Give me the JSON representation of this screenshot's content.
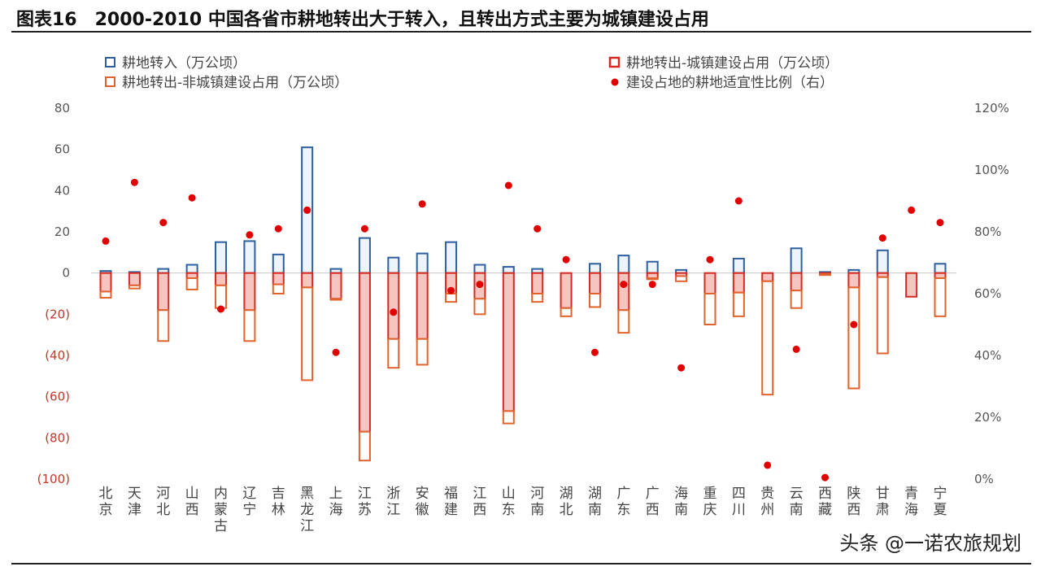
{
  "title": "图表16　2000-2010 中国各省市耕地转出大于转入，且转出方式主要为城镇建设占用",
  "watermark": "头条 @一诺农旅规划",
  "colors": {
    "transfer_in": "#2e5f9e",
    "urban": "#d42a22",
    "urban_fill": "#f6c5c0",
    "non_urban": "#e0632e",
    "ratio": "#e00000",
    "zero_line": "#c8c8c8"
  },
  "chart_data": {
    "type": "bar",
    "categories": [
      "北京",
      "天津",
      "河北",
      "山西",
      "内蒙古",
      "辽宁",
      "吉林",
      "黑龙江",
      "上海",
      "江苏",
      "浙江",
      "安徽",
      "福建",
      "江西",
      "山东",
      "河南",
      "湖北",
      "湖南",
      "广东",
      "广西",
      "海南",
      "重庆",
      "四川",
      "贵州",
      "云南",
      "西藏",
      "陕西",
      "甘肃",
      "青海",
      "宁夏"
    ],
    "series": [
      {
        "name": "耕地转入（万公顷）",
        "axis": "left",
        "values": [
          1,
          0.5,
          2,
          4,
          15,
          15.5,
          9,
          61,
          2,
          17,
          7.5,
          9.5,
          15,
          4,
          3,
          2,
          0,
          4.5,
          8.5,
          5.5,
          1.5,
          0,
          7,
          0,
          12,
          0.5,
          1.5,
          11,
          0,
          4.5
        ]
      },
      {
        "name": "耕地转出-城镇建设占用（万公顷）",
        "axis": "left",
        "values": [
          -9,
          -6,
          -18,
          -2.5,
          -6,
          -18,
          -5.5,
          -7,
          -12.5,
          -77,
          -32,
          -32,
          -10,
          -12.5,
          -67,
          -10,
          -17,
          -10,
          -18,
          -2.5,
          -1.5,
          -10,
          -9.5,
          -4,
          -8.5,
          -0.5,
          -7,
          -2,
          -11.5,
          -2.5
        ]
      },
      {
        "name": "耕地转出-非城镇建设占用（万公顷）",
        "axis": "left",
        "values": [
          -3,
          -1.5,
          -15,
          -5.5,
          -11,
          -15,
          -4.5,
          -45,
          -0.5,
          -14,
          -14,
          -12.5,
          -4,
          -7.5,
          -6,
          -4,
          -4,
          -6.5,
          -11,
          -0.5,
          -2.5,
          -15,
          -11.5,
          -55,
          -8.5,
          -0.5,
          -49,
          -37,
          0,
          -18.5
        ]
      },
      {
        "name": "建设占地的耕地适宜性比例（右）",
        "axis": "right",
        "type": "scatter",
        "values": [
          77,
          96,
          83,
          91,
          55,
          79,
          81,
          87,
          41,
          81,
          54,
          89,
          61,
          63,
          95,
          81,
          71,
          41,
          63,
          63,
          36,
          71,
          90,
          4.5,
          42,
          0.5,
          50,
          78,
          87,
          83
        ]
      }
    ],
    "left_axis": {
      "ylim": [
        -100,
        80
      ],
      "ticks": [
        80,
        60,
        40,
        20,
        0,
        -20,
        -40,
        -60,
        -80,
        -100
      ],
      "tick_labels": [
        "80",
        "60",
        "40",
        "20",
        "0",
        "(20)",
        "(40)",
        "(60)",
        "(80)",
        "(100)"
      ]
    },
    "right_axis": {
      "ylim": [
        0,
        120
      ],
      "ticks": [
        120,
        100,
        80,
        60,
        40,
        20,
        0
      ],
      "tick_labels": [
        "120%",
        "100%",
        "80%",
        "60%",
        "40%",
        "20%",
        "0%"
      ]
    },
    "grid": false,
    "legend_position": "top"
  }
}
